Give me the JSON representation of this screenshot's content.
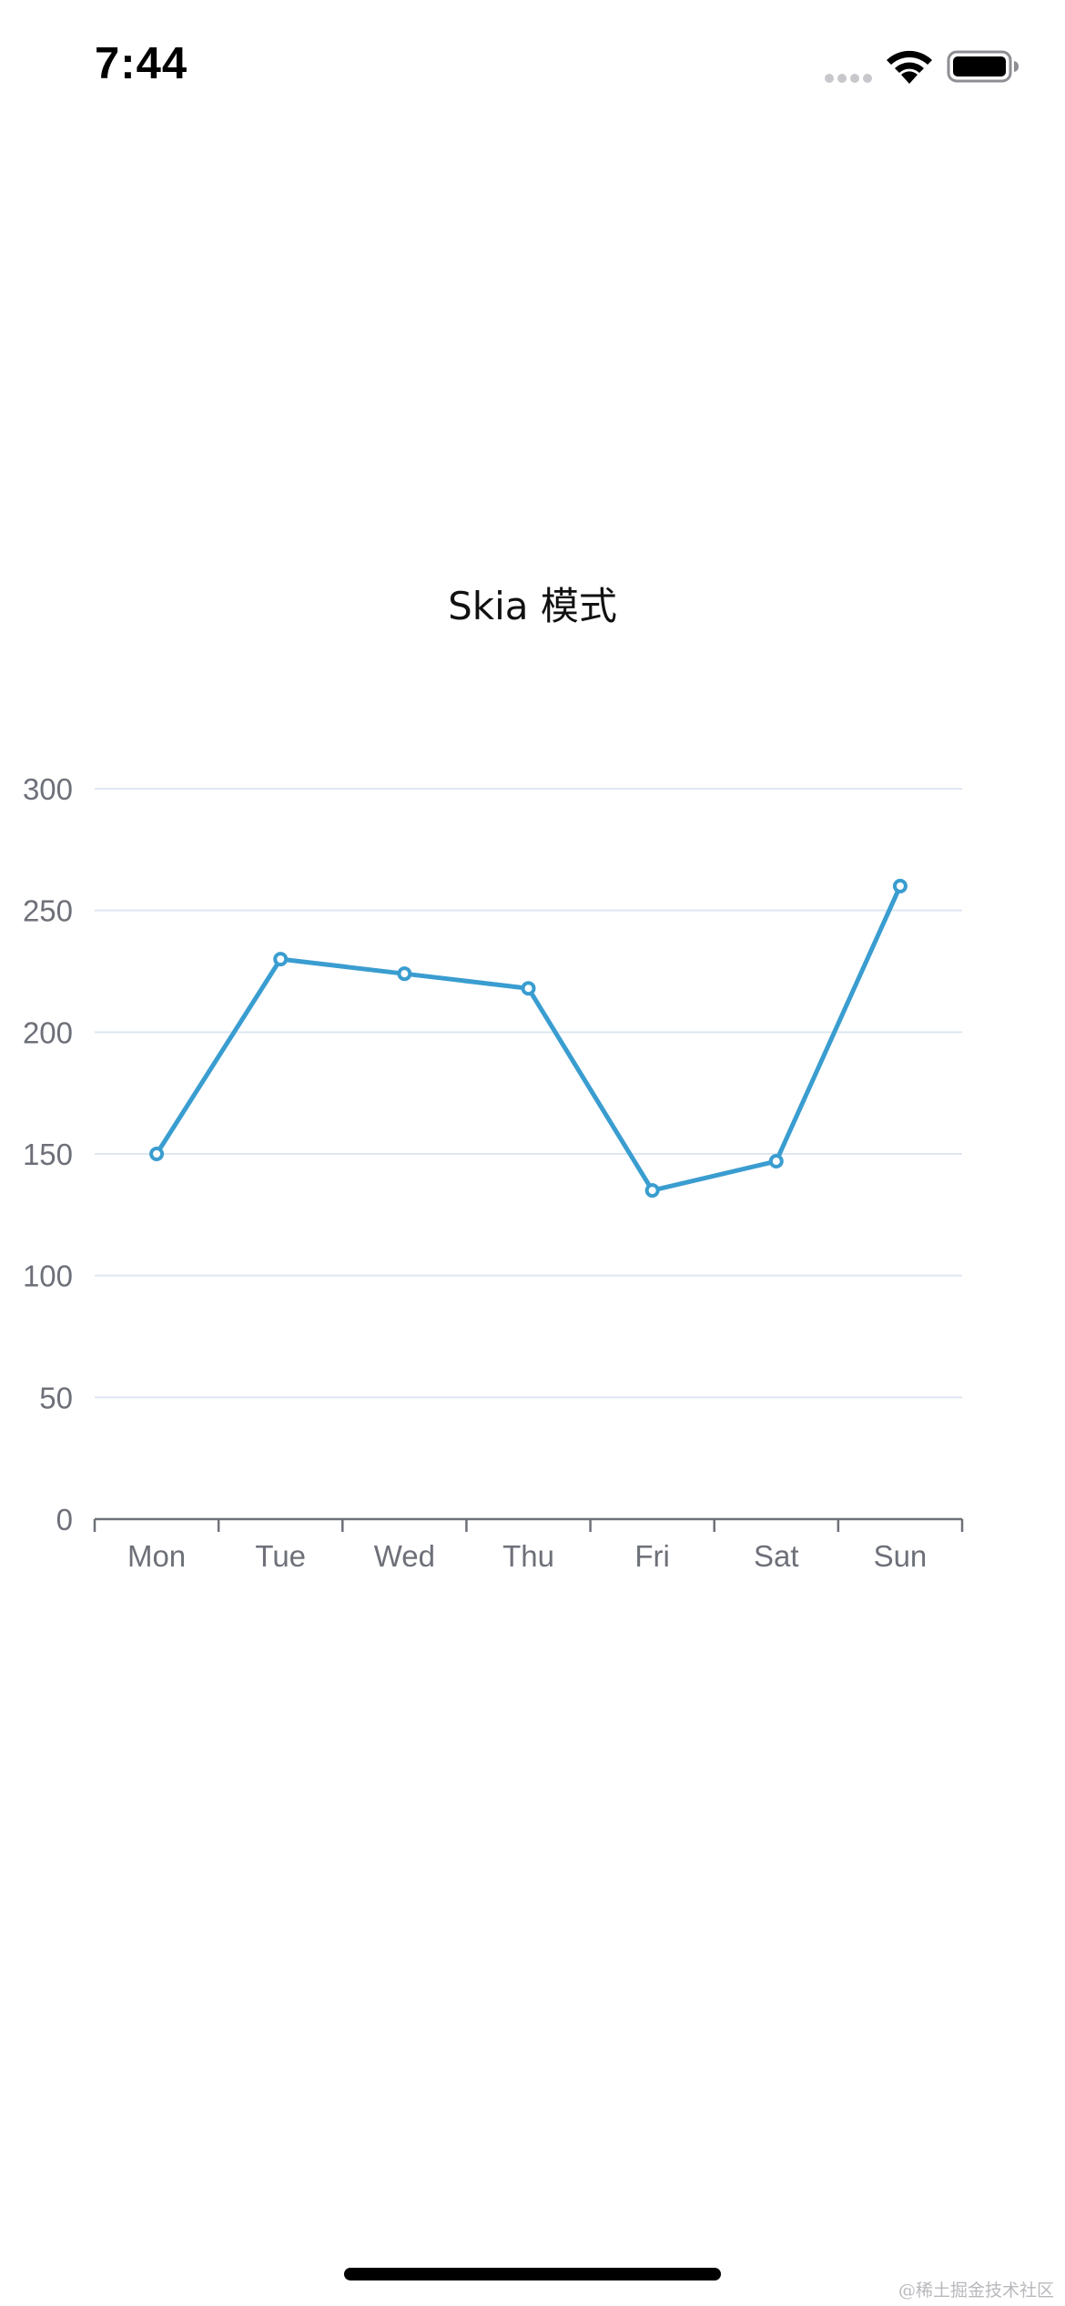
{
  "status_bar": {
    "time": "7:44",
    "icons": [
      "cellular-signal-icon",
      "wifi-icon",
      "battery-icon"
    ]
  },
  "page": {
    "title": "Skia 模式",
    "watermark": "@稀土掘金技术社区"
  },
  "colors": {
    "series_line": "#3a9dd0",
    "grid": "#dde6f1",
    "axis": "#6e7079",
    "tick_text": "#6e7079"
  },
  "chart_data": {
    "type": "line",
    "title": "Skia 模式",
    "xlabel": "",
    "ylabel": "",
    "categories": [
      "Mon",
      "Tue",
      "Wed",
      "Thu",
      "Fri",
      "Sat",
      "Sun"
    ],
    "series": [
      {
        "values": [
          150,
          230,
          224,
          218,
          135,
          147,
          260
        ]
      }
    ],
    "ylim": [
      0,
      300
    ],
    "yticks": [
      0,
      50,
      100,
      150,
      200,
      250,
      300
    ],
    "grid": true,
    "legend": "none"
  }
}
